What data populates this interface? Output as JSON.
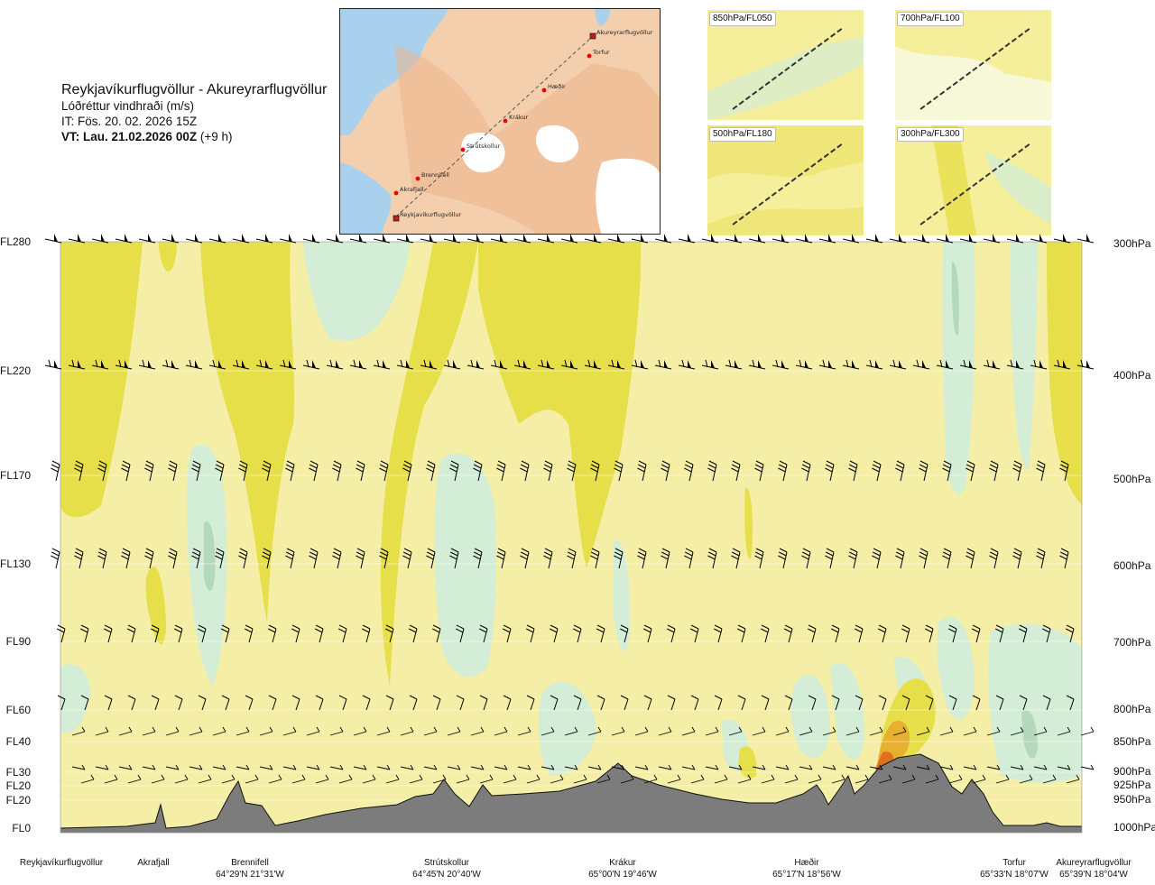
{
  "header": {
    "route_title": "Reykjavíkurflugvöllur - Akureyrarflugvöllur",
    "variable": "Lóðréttur vindhraði (m/s)",
    "issue_time": "IT: Fös. 20. 02. 2026 15Z",
    "valid_time_bold": "VT: Lau. 21.02.2026 00Z",
    "valid_time_offset": "(+9 h)"
  },
  "route_map": {
    "points": [
      {
        "name": "Akureyrarflugvöllur",
        "type": "airport"
      },
      {
        "name": "Torfur",
        "type": "waypoint"
      },
      {
        "name": "Hæðir",
        "type": "waypoint"
      },
      {
        "name": "Krákur",
        "type": "waypoint"
      },
      {
        "name": "Strútskollur",
        "type": "waypoint"
      },
      {
        "name": "Brennifell",
        "type": "waypoint"
      },
      {
        "name": "Akrafjall",
        "type": "waypoint"
      },
      {
        "name": "Reykjavíkurflugvöllur",
        "type": "airport"
      }
    ]
  },
  "insets": [
    {
      "label": "850hPa/FL050"
    },
    {
      "label": "700hPa/FL100"
    },
    {
      "label": "500hPa/FL180"
    },
    {
      "label": "300hPa/FL300"
    }
  ],
  "levels": [
    {
      "fl": "FL280",
      "hpa": "300hPa"
    },
    {
      "fl": "FL220",
      "hpa": "400hPa"
    },
    {
      "fl": "FL170",
      "hpa": "500hPa"
    },
    {
      "fl": "FL130",
      "hpa": "600hPa"
    },
    {
      "fl": "FL90",
      "hpa": "700hPa"
    },
    {
      "fl": "FL60",
      "hpa": "800hPa"
    },
    {
      "fl": "FL40",
      "hpa": "850hPa"
    },
    {
      "fl": "FL30",
      "hpa": "900hPa"
    },
    {
      "fl": "FL20",
      "hpa": "925hPa"
    },
    {
      "fl": "FL20",
      "hpa": "950hPa"
    },
    {
      "fl": "FL0",
      "hpa": "1000hPa"
    }
  ],
  "waypoints": [
    {
      "name": "Reykjavíkurflugvöllur",
      "coord": ""
    },
    {
      "name": "Akrafjall",
      "coord": ""
    },
    {
      "name": "Brennifell",
      "coord": "64°29'N 21°31'W"
    },
    {
      "name": "Strútskollur",
      "coord": "64°45'N 20°40'W"
    },
    {
      "name": "Krákur",
      "coord": "65°00'N 19°46'W"
    },
    {
      "name": "Hæðir",
      "coord": "65°17'N 18°56'W"
    },
    {
      "name": "Torfur",
      "coord": "65°33'N 18°07'W"
    },
    {
      "name": "Akureyrarflugvöllur",
      "coord": "65°39'N 18°04'W"
    }
  ],
  "colors": {
    "weak_updraft": "#f5eea6",
    "updraft": "#e6df4a",
    "strong_updraft": "#e8b030",
    "very_strong_updraft": "#e07020",
    "weak_downdraft": "#f7fae6",
    "downdraft": "#d4edd6",
    "strong_downdraft": "#b4d8bc",
    "terrain": "#7c7c7c",
    "sea": "#a9d1ee",
    "land": "#f3cfae"
  }
}
